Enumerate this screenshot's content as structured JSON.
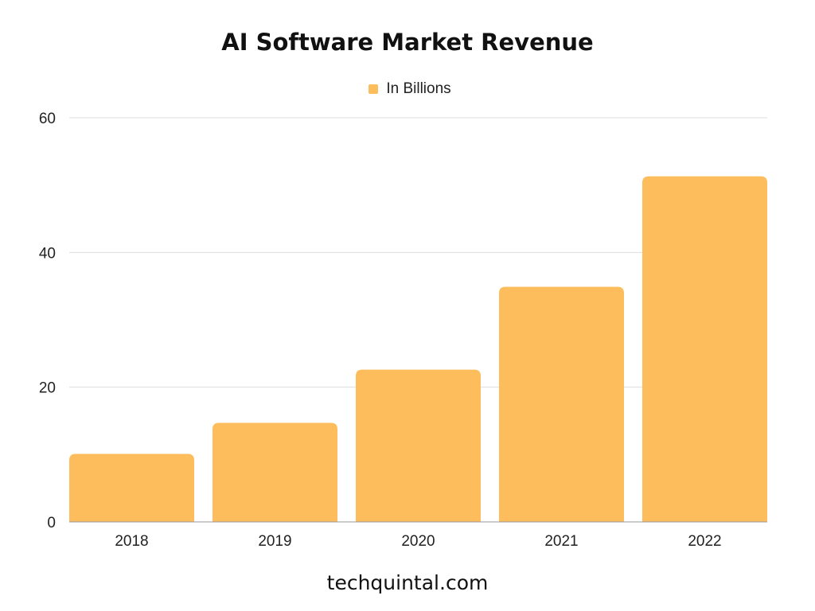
{
  "chart_data": {
    "type": "bar",
    "title": "AI Software Market Revenue",
    "categories": [
      "2018",
      "2019",
      "2020",
      "2021",
      "2022"
    ],
    "series": [
      {
        "name": "In Billions",
        "values": [
          10.1,
          14.7,
          22.6,
          34.9,
          51.3
        ]
      }
    ],
    "xlabel": "",
    "ylabel": "",
    "ylim": [
      0,
      60
    ],
    "yticks": [
      "0",
      "20",
      "40",
      "60"
    ],
    "grid": true,
    "legend_position": "top-center",
    "bar_color": "#FDBD5C",
    "gridline_color": "#DDDDDD"
  },
  "footer": {
    "text": "techquintal.com"
  }
}
